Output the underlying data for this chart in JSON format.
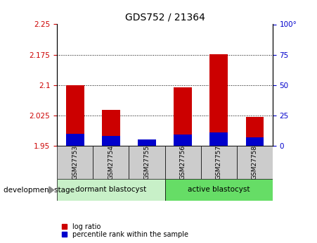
{
  "title": "GDS752 / 21364",
  "samples": [
    "GSM27753",
    "GSM27754",
    "GSM27755",
    "GSM27756",
    "GSM27757",
    "GSM27758"
  ],
  "log_ratio": [
    2.1,
    2.038,
    1.965,
    2.095,
    2.176,
    2.022
  ],
  "percentile_rank": [
    10,
    8,
    5,
    9,
    11,
    7
  ],
  "baseline": 1.95,
  "ylim_left": [
    1.95,
    2.25
  ],
  "yticks_left": [
    1.95,
    2.025,
    2.1,
    2.175,
    2.25
  ],
  "ytick_labels_left": [
    "1.95",
    "2.025",
    "2.1",
    "2.175",
    "2.25"
  ],
  "ylim_right": [
    0,
    100
  ],
  "yticks_right": [
    0,
    25,
    50,
    75,
    100
  ],
  "ytick_labels_right": [
    "0",
    "25",
    "50",
    "75",
    "100°"
  ],
  "group1_label": "dormant blastocyst",
  "group2_label": "active blastocyst",
  "group1_indices": [
    0,
    1,
    2
  ],
  "group2_indices": [
    3,
    4,
    5
  ],
  "group1_color": "#c8f0c8",
  "group2_color": "#66dd66",
  "bar_color_red": "#cc0000",
  "bar_color_blue": "#0000cc",
  "tick_label_color_left": "#cc0000",
  "tick_label_color_right": "#0000cc",
  "xlabel_area_color": "#cccccc",
  "legend_red": "log ratio",
  "legend_blue": "percentile rank within the sample",
  "stage_label": "development stage",
  "bar_width": 0.5,
  "percentile_scale": 0.003
}
